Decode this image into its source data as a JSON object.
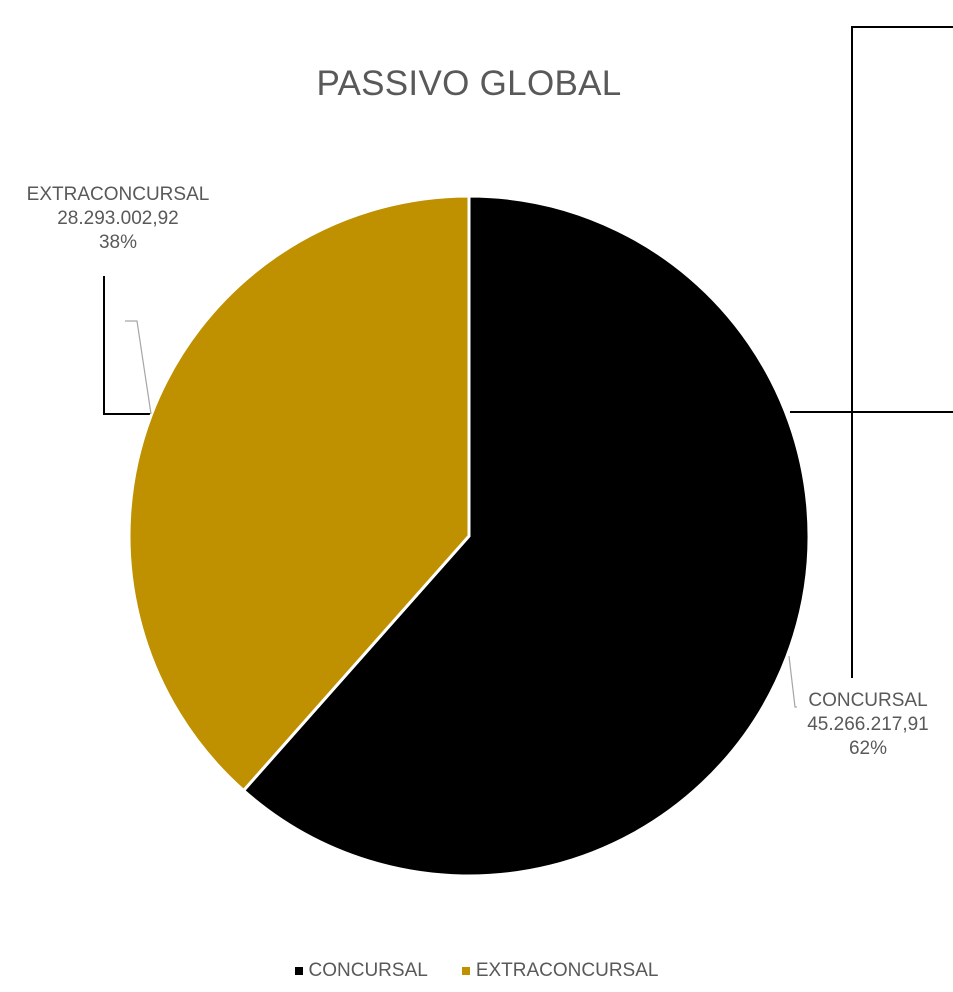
{
  "chart_data": {
    "type": "pie",
    "title": "PASSIVO GLOBAL",
    "categories": [
      "CONCURSAL",
      "EXTRACONCURSAL"
    ],
    "values": [
      45266217.91,
      28293002.92
    ],
    "value_labels": [
      "45.266.217,91",
      "28.293.002,92"
    ],
    "percent_labels": [
      "62%",
      "38%"
    ],
    "colors": [
      "#000000",
      "#BF9000"
    ],
    "legend": {
      "position": "bottom"
    }
  }
}
